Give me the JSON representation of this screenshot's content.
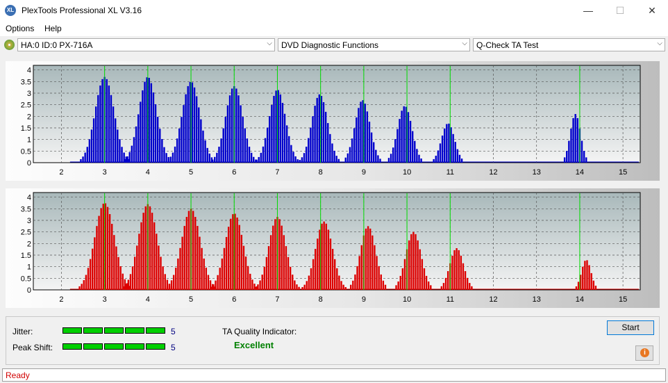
{
  "window": {
    "title": "PlexTools Professional XL V3.16",
    "icon_text": "XL",
    "minimize": "—",
    "maximize": "☐",
    "close": "✕"
  },
  "menu": [
    "Options",
    "Help"
  ],
  "toolbar": {
    "drive": "HA:0 ID:0  PX-716A",
    "function": "DVD Diagnostic Functions",
    "test": "Q-Check TA Test"
  },
  "charts": [
    {
      "name": "blue",
      "color": "#0000cc",
      "x_ticks": [
        "2",
        "3",
        "4",
        "5",
        "6",
        "7",
        "8",
        "9",
        "10",
        "11",
        "12",
        "13",
        "14",
        "15"
      ],
      "y_ticks": [
        "0",
        "0.5",
        "1",
        "1.5",
        "2",
        "2.5",
        "3",
        "3.5",
        "4"
      ],
      "markers": [
        3,
        4,
        5,
        6,
        7,
        8,
        9,
        10,
        11,
        14
      ],
      "clusters": [
        {
          "center": 3.0,
          "peak": 3.7,
          "width": 0.55
        },
        {
          "center": 4.0,
          "peak": 3.7,
          "width": 0.52
        },
        {
          "center": 5.0,
          "peak": 3.5,
          "width": 0.52
        },
        {
          "center": 6.0,
          "peak": 3.3,
          "width": 0.5
        },
        {
          "center": 7.0,
          "peak": 3.15,
          "width": 0.48
        },
        {
          "center": 7.98,
          "peak": 2.95,
          "width": 0.46
        },
        {
          "center": 8.97,
          "peak": 2.7,
          "width": 0.44
        },
        {
          "center": 9.95,
          "peak": 2.45,
          "width": 0.42
        },
        {
          "center": 10.95,
          "peak": 1.7,
          "width": 0.38
        },
        {
          "center": 13.9,
          "peak": 2.1,
          "width": 0.3
        }
      ]
    },
    {
      "name": "red",
      "color": "#dd0000",
      "x_ticks": [
        "2",
        "3",
        "4",
        "5",
        "6",
        "7",
        "8",
        "9",
        "10",
        "11",
        "12",
        "13",
        "14",
        "15"
      ],
      "y_ticks": [
        "0",
        "0.5",
        "1",
        "1.5",
        "2",
        "2.5",
        "3",
        "3.5",
        "4"
      ],
      "markers": [
        3,
        4,
        5,
        6,
        7,
        8,
        9,
        10,
        11,
        14
      ],
      "clusters": [
        {
          "center": 3.0,
          "peak": 3.75,
          "width": 0.58
        },
        {
          "center": 4.0,
          "peak": 3.7,
          "width": 0.55
        },
        {
          "center": 5.0,
          "peak": 3.5,
          "width": 0.55
        },
        {
          "center": 6.0,
          "peak": 3.3,
          "width": 0.53
        },
        {
          "center": 7.0,
          "peak": 3.15,
          "width": 0.5
        },
        {
          "center": 8.08,
          "peak": 2.95,
          "width": 0.5
        },
        {
          "center": 9.1,
          "peak": 2.75,
          "width": 0.45
        },
        {
          "center": 10.15,
          "peak": 2.5,
          "width": 0.45
        },
        {
          "center": 11.15,
          "peak": 1.8,
          "width": 0.4
        },
        {
          "center": 14.15,
          "peak": 1.3,
          "width": 0.28
        }
      ]
    }
  ],
  "results": {
    "jitter_label": "Jitter:",
    "jitter_value": "5",
    "jitter_level": 5,
    "peak_shift_label": "Peak Shift:",
    "peak_shift_value": "5",
    "peak_shift_level": 5,
    "ta_label": "TA Quality Indicator:",
    "ta_value": "Excellent"
  },
  "start_label": "Start",
  "info_icon": "i",
  "status": "Ready"
}
